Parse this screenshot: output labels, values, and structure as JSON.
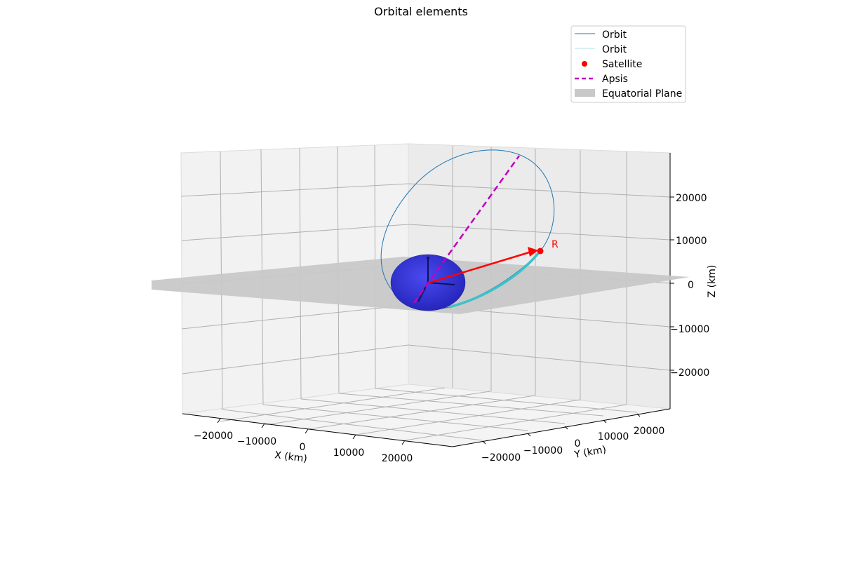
{
  "chart_data": {
    "type": "line",
    "title": "Orbital elements",
    "xlabel": "X (km)",
    "ylabel": "Y (km)",
    "zlabel": "Z (km)",
    "xlim": [
      -25000,
      25000
    ],
    "ylim": [
      -25000,
      25000
    ],
    "zlim": [
      -27000,
      27000
    ],
    "x_ticks": [
      "−20000",
      "−10000",
      "0",
      "10000",
      "20000"
    ],
    "y_ticks": [
      "−20000",
      "−10000",
      "0",
      "10000",
      "20000"
    ],
    "z_ticks": [
      "−20000",
      "−10000",
      "0",
      "10000",
      "20000"
    ],
    "grid": true,
    "legend_position": "top-right",
    "legend": [
      {
        "label": "Orbit",
        "color": "#1f77b4",
        "style": "thin-line"
      },
      {
        "label": "Orbit",
        "color": "#b0e0e6",
        "style": "thin-line"
      },
      {
        "label": "Satellite",
        "color": "#ff0000",
        "style": "dot"
      },
      {
        "label": "Apsis",
        "color": "#bf00bf",
        "style": "dashed"
      },
      {
        "label": "Equatorial Plane",
        "color": "#c8c8c8",
        "style": "patch"
      }
    ],
    "annotations": [
      {
        "text": "R",
        "color": "#ff0000"
      }
    ],
    "colors": {
      "orbit": "#1f77b4",
      "orbit_arc": "#40c0c8",
      "satellite": "#ff0000",
      "apsis": "#bf00bf",
      "earth": "#2a2ad0",
      "plane": "#c8c8c8"
    }
  }
}
